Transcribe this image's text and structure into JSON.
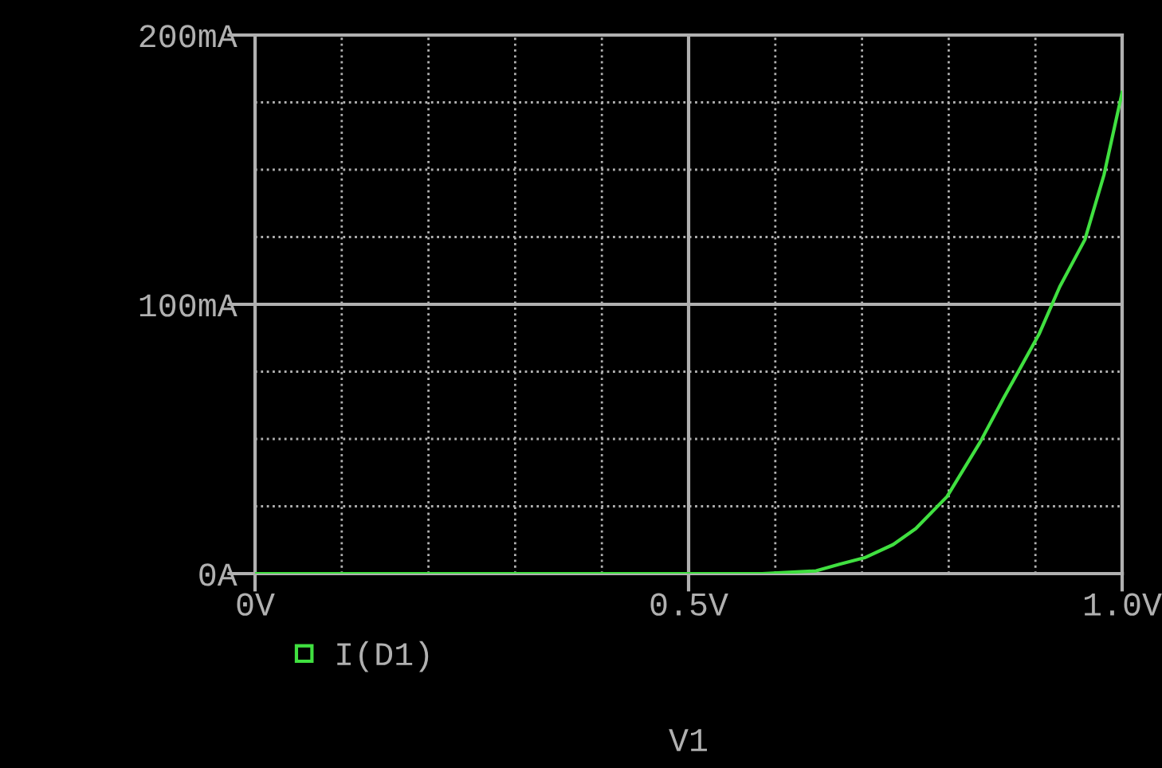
{
  "chart_data": {
    "type": "line",
    "xlabel": "V1",
    "x": [
      0,
      0.585,
      0.647,
      0.674,
      0.703,
      0.736,
      0.762,
      0.798,
      0.836,
      0.863,
      0.904,
      0.928,
      0.957,
      0.979,
      1.0
    ],
    "series": [
      {
        "name": "I(D1)",
        "color": "#40e040",
        "values": [
          0,
          0,
          1.0,
          3.5,
          5.9,
          10.8,
          16.7,
          28.6,
          48.7,
          65,
          88.8,
          106.5,
          124,
          148,
          178.7
        ]
      }
    ],
    "xlim": [
      0,
      1.0
    ],
    "xticks": [
      {
        "value": 0,
        "label": "0V"
      },
      {
        "value": 0.1,
        "label": null
      },
      {
        "value": 0.2,
        "label": null
      },
      {
        "value": 0.3,
        "label": null
      },
      {
        "value": 0.4,
        "label": null
      },
      {
        "value": 0.5,
        "label": "0.5V"
      },
      {
        "value": 0.6,
        "label": null
      },
      {
        "value": 0.7,
        "label": null
      },
      {
        "value": 0.8,
        "label": null
      },
      {
        "value": 0.9,
        "label": null
      },
      {
        "value": 1.0,
        "label": "1.0V"
      }
    ],
    "ylim": [
      0,
      200
    ],
    "yticks": [
      {
        "value": 0,
        "label": "0A"
      },
      {
        "value": 25,
        "label": null
      },
      {
        "value": 50,
        "label": null
      },
      {
        "value": 75,
        "label": null
      },
      {
        "value": 100,
        "label": "100mA"
      },
      {
        "value": 125,
        "label": null
      },
      {
        "value": 150,
        "label": null
      },
      {
        "value": 175,
        "label": null
      },
      {
        "value": 200,
        "label": "200mA"
      }
    ],
    "grid": true,
    "legend": "bottom",
    "line_style": "solid"
  }
}
